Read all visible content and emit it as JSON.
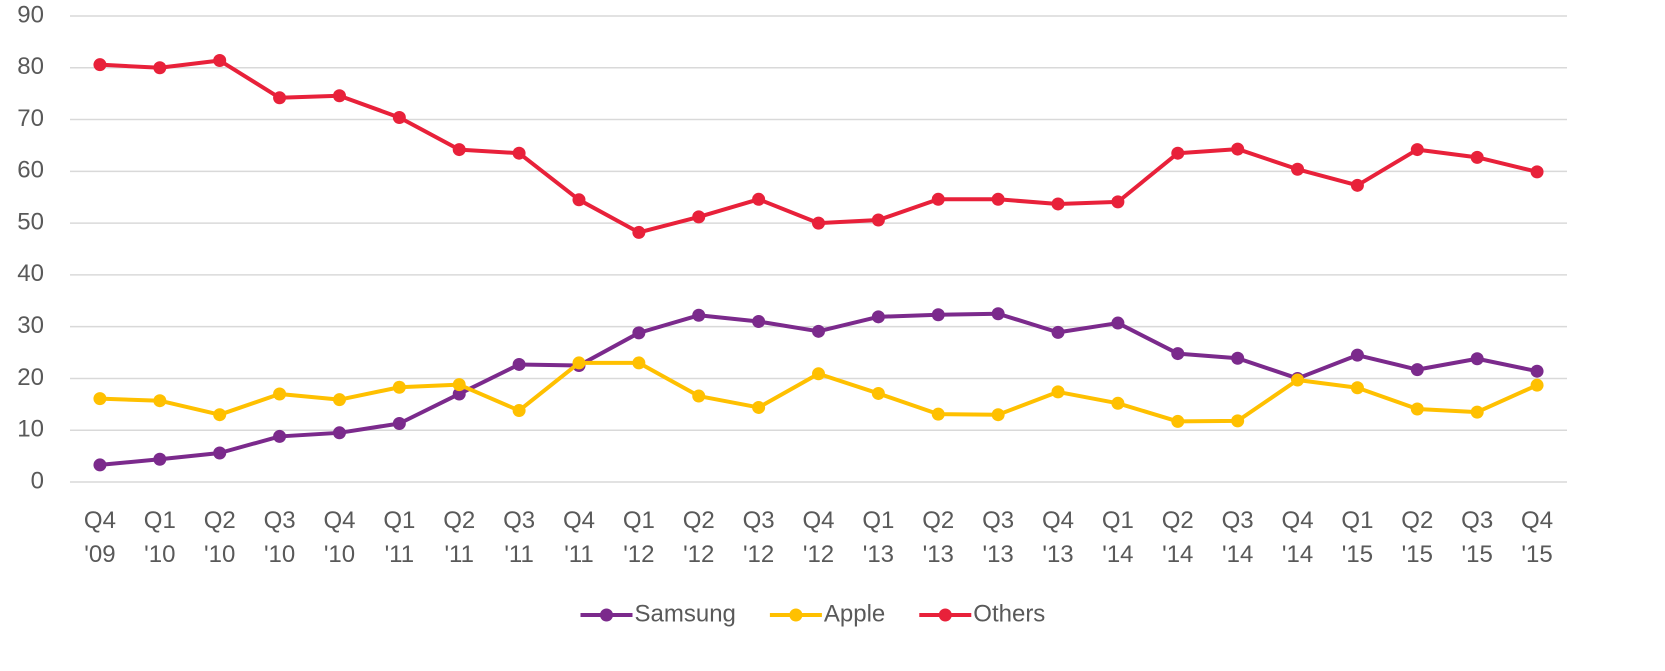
{
  "chart_data": {
    "type": "line",
    "categories": [
      "Q4 '09",
      "Q1 '10",
      "Q2 '10",
      "Q3 '10",
      "Q4 '10",
      "Q1 '11",
      "Q2 '11",
      "Q3 '11",
      "Q4 '11",
      "Q1 '12",
      "Q2 '12",
      "Q3 '12",
      "Q4 '12",
      "Q1 '13",
      "Q2 '13",
      "Q3 '13",
      "Q4 '13",
      "Q1 '14",
      "Q2 '14",
      "Q3 '14",
      "Q4 '14",
      "Q1 '15",
      "Q2 '15",
      "Q3 '15",
      "Q4 '15"
    ],
    "series": [
      {
        "name": "Samsung",
        "color": "#7b2a8c",
        "values": [
          3.3,
          4.4,
          5.6,
          8.8,
          9.5,
          11.3,
          17.0,
          22.7,
          22.5,
          28.8,
          32.2,
          31.0,
          29.1,
          31.9,
          32.3,
          32.5,
          28.9,
          30.7,
          24.8,
          23.9,
          20.0,
          24.5,
          21.7,
          23.8,
          21.4
        ]
      },
      {
        "name": "Apple",
        "color": "#ffc000",
        "values": [
          16.1,
          15.7,
          13.0,
          17.0,
          15.9,
          18.3,
          18.8,
          13.8,
          23.0,
          23.0,
          16.6,
          14.4,
          20.9,
          17.1,
          13.1,
          13.0,
          17.4,
          15.2,
          11.7,
          11.8,
          19.7,
          18.2,
          14.1,
          13.5,
          18.7
        ]
      },
      {
        "name": "Others",
        "color": "#e8213a",
        "values": [
          80.6,
          80.0,
          81.4,
          74.2,
          74.6,
          70.4,
          64.2,
          63.5,
          54.5,
          48.2,
          51.2,
          54.6,
          50.0,
          50.6,
          54.6,
          54.6,
          53.7,
          54.1,
          63.5,
          64.3,
          60.4,
          57.3,
          64.2,
          62.7,
          59.9
        ]
      }
    ],
    "ylim": [
      0,
      90
    ],
    "yticks": [
      0,
      10,
      20,
      30,
      40,
      50,
      60,
      70,
      80,
      90
    ],
    "grid": true,
    "legend": "bottom"
  }
}
